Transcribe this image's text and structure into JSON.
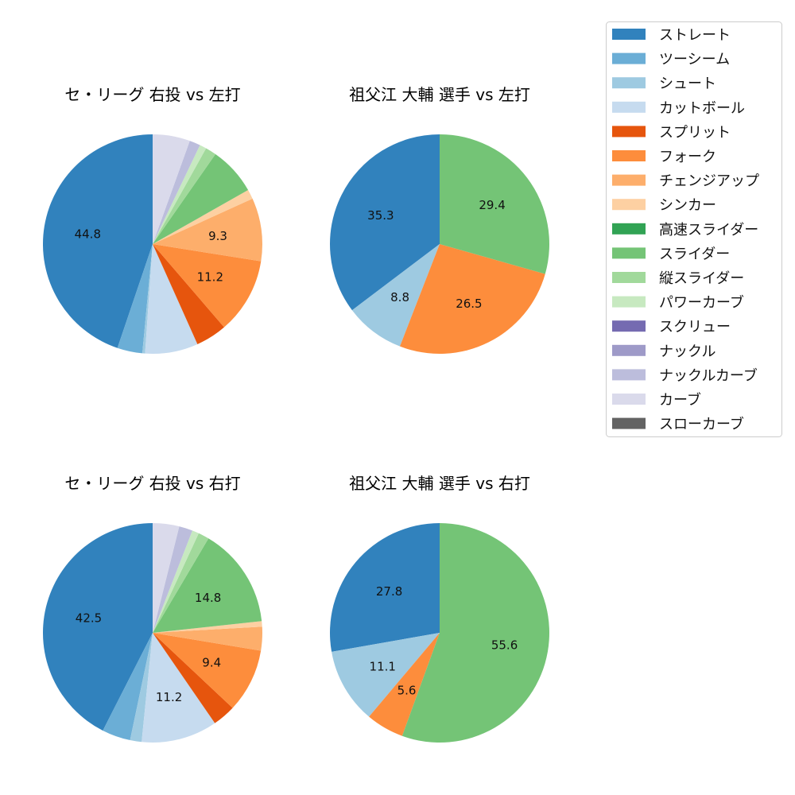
{
  "chart_data": {
    "type": "pie",
    "legend": {
      "placement": "top-right",
      "entries": [
        {
          "name": "ストレート",
          "color": "#3182bd"
        },
        {
          "name": "ツーシーム",
          "color": "#6baed6"
        },
        {
          "name": "シュート",
          "color": "#9ecae1"
        },
        {
          "name": "カットボール",
          "color": "#c6dbef"
        },
        {
          "name": "スプリット",
          "color": "#e6550d"
        },
        {
          "name": "フォーク",
          "color": "#fd8d3c"
        },
        {
          "name": "チェンジアップ",
          "color": "#fdae6b"
        },
        {
          "name": "シンカー",
          "color": "#fdd0a2"
        },
        {
          "name": "高速スライダー",
          "color": "#31a354"
        },
        {
          "name": "スライダー",
          "color": "#74c476"
        },
        {
          "name": "縦スライダー",
          "color": "#a1d99b"
        },
        {
          "name": "パワーカーブ",
          "color": "#c7e9c0"
        },
        {
          "name": "スクリュー",
          "color": "#756bb1"
        },
        {
          "name": "ナックル",
          "color": "#9e9ac8"
        },
        {
          "name": "ナックルカーブ",
          "color": "#bcbddc"
        },
        {
          "name": "カーブ",
          "color": "#dadaeb"
        },
        {
          "name": "スローカーブ",
          "color": "#636363"
        }
      ]
    },
    "charts": [
      {
        "title": "セ・リーグ 右投 vs 左打",
        "slices": [
          {
            "name": "ストレート",
            "value": 44.8,
            "label": "44.8"
          },
          {
            "name": "ツーシーム",
            "value": 3.7
          },
          {
            "name": "シュート",
            "value": 0.4
          },
          {
            "name": "カットボール",
            "value": 7.8
          },
          {
            "name": "スプリット",
            "value": 4.6
          },
          {
            "name": "フォーク",
            "value": 11.2,
            "label": "11.2"
          },
          {
            "name": "チェンジアップ",
            "value": 9.3,
            "label": "9.3"
          },
          {
            "name": "シンカー",
            "value": 1.4
          },
          {
            "name": "スライダー",
            "value": 7.1
          },
          {
            "name": "縦スライダー",
            "value": 1.6
          },
          {
            "name": "パワーカーブ",
            "value": 1.0
          },
          {
            "name": "ナックルカーブ",
            "value": 1.6
          },
          {
            "name": "カーブ",
            "value": 5.5
          }
        ]
      },
      {
        "title": "祖父江 大輔 選手 vs 左打",
        "slices": [
          {
            "name": "ストレート",
            "value": 35.3,
            "label": "35.3"
          },
          {
            "name": "シュート",
            "value": 8.8,
            "label": "8.8"
          },
          {
            "name": "フォーク",
            "value": 26.5,
            "label": "26.5"
          },
          {
            "name": "スライダー",
            "value": 29.4,
            "label": "29.4"
          }
        ]
      },
      {
        "title": "セ・リーグ 右投 vs 右打",
        "slices": [
          {
            "name": "ストレート",
            "value": 42.5,
            "label": "42.5"
          },
          {
            "name": "ツーシーム",
            "value": 4.2
          },
          {
            "name": "シュート",
            "value": 1.7
          },
          {
            "name": "カットボール",
            "value": 11.2,
            "label": "11.2"
          },
          {
            "name": "スプリット",
            "value": 3.4
          },
          {
            "name": "フォーク",
            "value": 9.4,
            "label": "9.4"
          },
          {
            "name": "チェンジアップ",
            "value": 3.5
          },
          {
            "name": "シンカー",
            "value": 0.8
          },
          {
            "name": "スライダー",
            "value": 14.8,
            "label": "14.8"
          },
          {
            "name": "縦スライダー",
            "value": 1.6
          },
          {
            "name": "パワーカーブ",
            "value": 1.0
          },
          {
            "name": "ナックルカーブ",
            "value": 2.0
          },
          {
            "name": "カーブ",
            "value": 3.9
          }
        ]
      },
      {
        "title": "祖父江 大輔 選手 vs 右打",
        "slices": [
          {
            "name": "ストレート",
            "value": 27.8,
            "label": "27.8"
          },
          {
            "name": "シュート",
            "value": 11.1,
            "label": "11.1"
          },
          {
            "name": "フォーク",
            "value": 5.6,
            "label": "5.6"
          },
          {
            "name": "スライダー",
            "value": 55.6,
            "label": "55.6"
          }
        ]
      }
    ]
  }
}
